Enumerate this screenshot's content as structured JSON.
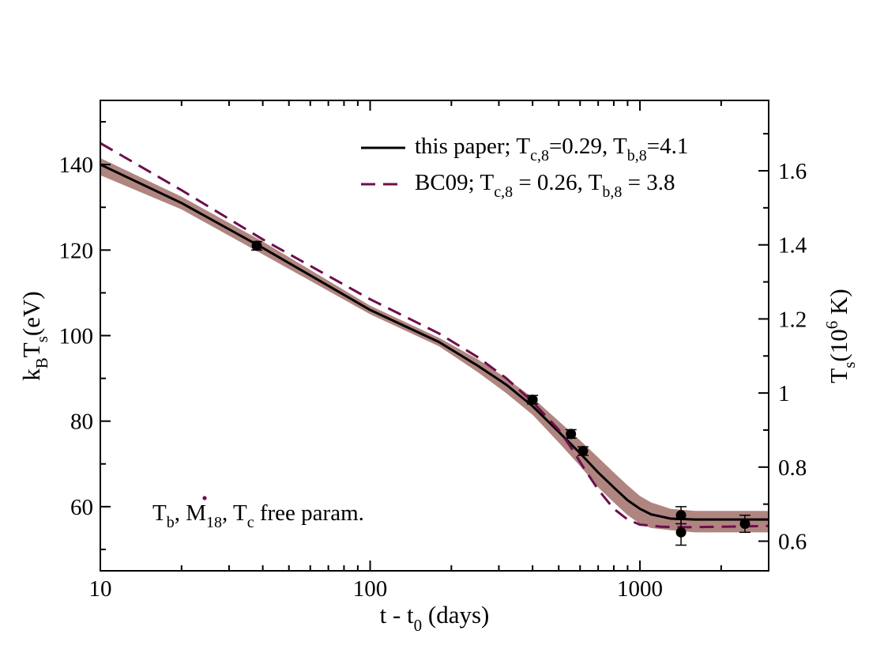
{
  "colors": {
    "band": "#b08580",
    "dashed": "#6d0e4c",
    "solid": "#000000",
    "annotation": "#6d0e4c"
  },
  "chart_data": {
    "type": "line",
    "x_scale": "log",
    "xlim": [
      10,
      3000
    ],
    "ylim": [
      45,
      155
    ],
    "y2lim": [
      0.52,
      1.79
    ],
    "xlabel": {
      "main": "t - t",
      "sub": "0",
      "unit": " (days)"
    },
    "ylabel": {
      "main_k": "k",
      "sub_B": "B",
      "main_T": "T",
      "sub_s": "s",
      "unit": "(eV)"
    },
    "y2label": {
      "main": "T",
      "sub": "s",
      "open": "(10",
      "sup": "6",
      "unit": " K)"
    },
    "xticks": [
      {
        "value": 10,
        "label": "10"
      },
      {
        "value": 100,
        "label": "100"
      },
      {
        "value": 1000,
        "label": "1000"
      }
    ],
    "yticks": [
      {
        "value": 60,
        "label": "60"
      },
      {
        "value": 80,
        "label": "80"
      },
      {
        "value": 100,
        "label": "100"
      },
      {
        "value": 120,
        "label": "120"
      },
      {
        "value": 140,
        "label": "140"
      }
    ],
    "y2ticks": [
      {
        "value": 0.6,
        "label": "0.6"
      },
      {
        "value": 0.8,
        "label": "0.8"
      },
      {
        "value": 1.0,
        "label": "1"
      },
      {
        "value": 1.2,
        "label": "1.2"
      },
      {
        "value": 1.4,
        "label": "1.4"
      },
      {
        "value": 1.6,
        "label": "1.6"
      }
    ],
    "legend": {
      "position": "top-right",
      "entries": [
        {
          "style": "solid",
          "text": "this paper; T",
          "sub1": "c,8",
          "mid": "=0.29, T",
          "sub2": "b,8",
          "end": "=4.1"
        },
        {
          "style": "dashed",
          "text": "BC09;  T",
          "sub1": "c,8",
          "mid": " = 0.26, T",
          "sub2": "b,8",
          "end": " = 3.8"
        }
      ]
    },
    "annotation": {
      "position": "bottom-left",
      "t_b": "T",
      "sub_b": "b",
      "comma1": ", ",
      "m": "M",
      "sub_18": "18",
      "comma2": ", ",
      "t_c": "T",
      "sub_c": "c",
      "rest": " free param."
    },
    "series": [
      {
        "name": "this paper",
        "style": "solid",
        "x": [
          10,
          20,
          40,
          100,
          180,
          250,
          320,
          400,
          500,
          600,
          700,
          800,
          900,
          1000,
          1100,
          1300,
          1600,
          2000,
          3000
        ],
        "y": [
          140,
          131,
          120.5,
          106,
          98.5,
          93,
          88.5,
          83.5,
          77.5,
          72.5,
          68,
          64.5,
          61.5,
          59.5,
          58.2,
          57.2,
          57.0,
          57.0,
          57.0
        ]
      },
      {
        "name": "BC09",
        "style": "dashed",
        "x": [
          10,
          20,
          40,
          100,
          180,
          250,
          320,
          400,
          500,
          560,
          620,
          700,
          800,
          900,
          1000,
          1200,
          1500,
          2000,
          3000
        ],
        "y": [
          145,
          134,
          122.5,
          108.5,
          100.5,
          95,
          90,
          84.5,
          78,
          73.5,
          69,
          64,
          59.5,
          57,
          55.8,
          55.3,
          55.2,
          55.3,
          55.5
        ]
      }
    ],
    "band": {
      "name": "uncertainty",
      "x": [
        10,
        20,
        40,
        100,
        180,
        250,
        320,
        400,
        500,
        600,
        700,
        800,
        900,
        1000,
        1100,
        1300,
        1600,
        2000,
        3000
      ],
      "upper": [
        141.5,
        132.5,
        122,
        107,
        99.5,
        94.5,
        90,
        85.5,
        80,
        75.5,
        71.5,
        68,
        65,
        62.5,
        61,
        59.5,
        59,
        59,
        59
      ],
      "lower": [
        137.5,
        129.5,
        119,
        105,
        97.5,
        91.5,
        86.5,
        81.5,
        75,
        69.5,
        64.5,
        61,
        58,
        56,
        55,
        54.5,
        54,
        54,
        54
      ]
    },
    "points": [
      {
        "x": 38,
        "y": 121,
        "err": 1
      },
      {
        "x": 400,
        "y": 85,
        "err": 1
      },
      {
        "x": 555,
        "y": 77,
        "err": 1
      },
      {
        "x": 615,
        "y": 73,
        "err": 1
      },
      {
        "x": 1420,
        "y": 58,
        "err": 2
      },
      {
        "x": 1420,
        "y": 54,
        "err": 3
      },
      {
        "x": 2450,
        "y": 56,
        "err": 2
      }
    ]
  }
}
